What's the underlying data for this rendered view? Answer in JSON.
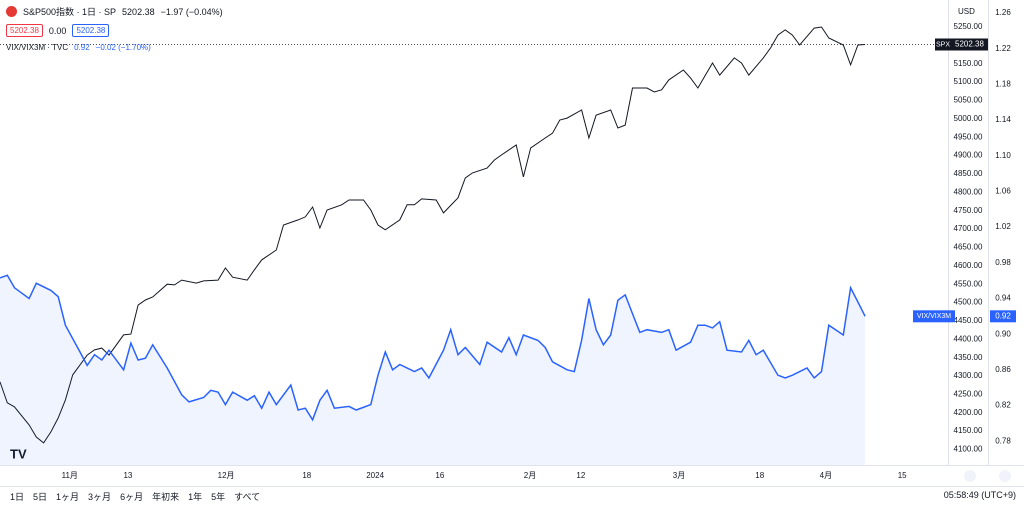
{
  "chart_data": {
    "type": "line",
    "legend": {
      "title": "S&P500指数 · 1日 · SP",
      "close": "5202.38",
      "change": "−1.97 (−0.04%)",
      "bid": "5202.38",
      "spread": "0.00",
      "ask": "5202.38"
    },
    "legend2": {
      "title": "VIX/VIX3M · TVC",
      "value": "0.92",
      "change": "−0.02 (−1.70%)"
    },
    "currency": "USD",
    "xlim": [
      0,
      130.4
    ],
    "xticks": [
      {
        "value": 9.6,
        "label": "11月"
      },
      {
        "value": 17.6,
        "label": "13"
      },
      {
        "value": 31.1,
        "label": "12月"
      },
      {
        "value": 42.2,
        "label": "18"
      },
      {
        "value": 51.6,
        "label": "2024"
      },
      {
        "value": 60.5,
        "label": "16"
      },
      {
        "value": 72.9,
        "label": "2月"
      },
      {
        "value": 79.9,
        "label": "12"
      },
      {
        "value": 93.4,
        "label": "3月"
      },
      {
        "value": 104.5,
        "label": "18"
      },
      {
        "value": 113.6,
        "label": "4月"
      },
      {
        "value": 124.1,
        "label": "15"
      }
    ],
    "ylim": [
      4057.8,
      5323.5
    ],
    "yticks": [
      {
        "value": 4100,
        "label": "4100.00"
      },
      {
        "value": 4150,
        "label": "4150.00"
      },
      {
        "value": 4200,
        "label": "4200.00"
      },
      {
        "value": 4250,
        "label": "4250.00"
      },
      {
        "value": 4300,
        "label": "4300.00"
      },
      {
        "value": 4350,
        "label": "4350.00"
      },
      {
        "value": 4400,
        "label": "4400.00"
      },
      {
        "value": 4450,
        "label": "4450.00"
      },
      {
        "value": 4500,
        "label": "4500.00"
      },
      {
        "value": 4550,
        "label": "4550.00"
      },
      {
        "value": 4600,
        "label": "4600.00"
      },
      {
        "value": 4650,
        "label": "4650.00"
      },
      {
        "value": 4700,
        "label": "4700.00"
      },
      {
        "value": 4750,
        "label": "4750.00"
      },
      {
        "value": 4800,
        "label": "4800.00"
      },
      {
        "value": 4850,
        "label": "4850.00"
      },
      {
        "value": 4900,
        "label": "4900.00"
      },
      {
        "value": 4950,
        "label": "4950.00"
      },
      {
        "value": 5000,
        "label": "5000.00"
      },
      {
        "value": 5050,
        "label": "5050.00"
      },
      {
        "value": 5100,
        "label": "5100.00"
      },
      {
        "value": 5150,
        "label": "5150.00"
      },
      {
        "value": 5250,
        "label": "5250.00"
      }
    ],
    "y2lim": [
      0.7533,
      1.2746
    ],
    "y2ticks": [
      0.78,
      0.82,
      0.86,
      {
        "value": 0.9,
        "label": "0.90"
      },
      0.94,
      0.98,
      1.02,
      1.06,
      {
        "value": 1.1,
        "label": "1.10"
      },
      1.14,
      1.18,
      1.22,
      1.26
    ],
    "grid": false,
    "series": [
      {
        "name": "SPX",
        "color": "#131722",
        "x": [
          0,
          1,
          2,
          4,
          5,
          6,
          7,
          8,
          9,
          10,
          12,
          13,
          14,
          15,
          17,
          18,
          19,
          20,
          21,
          23,
          24,
          25,
          27,
          28,
          30,
          31,
          32,
          34,
          35,
          36,
          38,
          39,
          41,
          42,
          43,
          44,
          45,
          47,
          48,
          50,
          51,
          52,
          53,
          55,
          56,
          57,
          58,
          60,
          61,
          63,
          64,
          65,
          67,
          68,
          69,
          71,
          72,
          73,
          75,
          76,
          77,
          78,
          80,
          81,
          82,
          84,
          85,
          86,
          87,
          89,
          90,
          91,
          92,
          94,
          95,
          96,
          98,
          99,
          101,
          102,
          103,
          105,
          106,
          107,
          108,
          109,
          110,
          112,
          113,
          114,
          116,
          117,
          118,
          119
        ],
        "values": [
          4284,
          4227,
          4216,
          4167,
          4134,
          4118,
          4148,
          4186,
          4235,
          4303,
          4357,
          4371,
          4376,
          4357,
          4412,
          4414,
          4493,
          4507,
          4515,
          4550,
          4548,
          4561,
          4553,
          4559,
          4561,
          4594,
          4569,
          4561,
          4589,
          4616,
          4643,
          4711,
          4725,
          4733,
          4760,
          4703,
          4752,
          4766,
          4779,
          4779,
          4752,
          4711,
          4698,
          4725,
          4766,
          4766,
          4782,
          4779,
          4744,
          4785,
          4839,
          4853,
          4866,
          4888,
          4902,
          4929,
          4842,
          4921,
          4948,
          4961,
          4997,
          5002,
          5024,
          4948,
          5010,
          5024,
          4975,
          4983,
          5084,
          5084,
          5073,
          5079,
          5106,
          5133,
          5111,
          5084,
          5152,
          5119,
          5166,
          5152,
          5119,
          5166,
          5193,
          5228,
          5242,
          5228,
          5201,
          5247,
          5250,
          5220,
          5201,
          5147,
          5201,
          5202.38
        ]
      },
      {
        "name": "VIX/VIX3M",
        "color": "#2962ff",
        "axis": "y2",
        "x": [
          0,
          1,
          2,
          4,
          5,
          7,
          8,
          9,
          11,
          12,
          13,
          14,
          15,
          17,
          18,
          19,
          20,
          21,
          23,
          25,
          26,
          28,
          29,
          30,
          31,
          32,
          34,
          35,
          36,
          37,
          38,
          40,
          41,
          42,
          43,
          44,
          45,
          46,
          48,
          49,
          51,
          52,
          53,
          54,
          55,
          57,
          58,
          59,
          61,
          62,
          63,
          64,
          66,
          67,
          69,
          70,
          71,
          72,
          74,
          75,
          76,
          78,
          79,
          80,
          81,
          82,
          83,
          84,
          85,
          86,
          88,
          89,
          91,
          92,
          93,
          95,
          96,
          97,
          98,
          99,
          100,
          102,
          103,
          104,
          105,
          107,
          108,
          109,
          111,
          112,
          113,
          114,
          116,
          117,
          118,
          119
        ],
        "values": [
          0.963,
          0.966,
          0.952,
          0.94,
          0.957,
          0.949,
          0.942,
          0.91,
          0.88,
          0.865,
          0.877,
          0.871,
          0.882,
          0.86,
          0.89,
          0.871,
          0.873,
          0.888,
          0.862,
          0.832,
          0.824,
          0.829,
          0.837,
          0.835,
          0.821,
          0.835,
          0.826,
          0.831,
          0.817,
          0.835,
          0.821,
          0.843,
          0.815,
          0.817,
          0.804,
          0.826,
          0.837,
          0.817,
          0.819,
          0.815,
          0.821,
          0.854,
          0.88,
          0.86,
          0.866,
          0.858,
          0.862,
          0.851,
          0.882,
          0.905,
          0.877,
          0.885,
          0.866,
          0.891,
          0.88,
          0.896,
          0.877,
          0.899,
          0.893,
          0.885,
          0.869,
          0.86,
          0.858,
          0.893,
          0.94,
          0.905,
          0.888,
          0.899,
          0.938,
          0.944,
          0.902,
          0.905,
          0.902,
          0.905,
          0.882,
          0.891,
          0.91,
          0.91,
          0.907,
          0.914,
          0.882,
          0.88,
          0.893,
          0.877,
          0.882,
          0.854,
          0.851,
          0.854,
          0.862,
          0.851,
          0.858,
          0.91,
          0.899,
          0.952,
          0.936,
          0.92
        ]
      }
    ]
  },
  "toolbar": [
    "1日",
    "5日",
    "1ヶ月",
    "3ヶ月",
    "6ヶ月",
    "年初来",
    "1年",
    "5年",
    "すべて"
  ],
  "clock": "05:58:49 (UTC+9)"
}
